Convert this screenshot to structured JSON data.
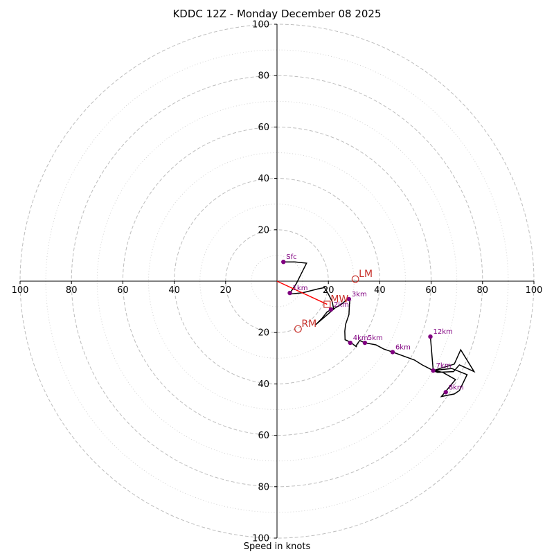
{
  "chart_data": {
    "type": "hodograph",
    "title": "KDDC 12Z - Monday December 08 2025",
    "xlabel": "Speed in knots",
    "ylabel": "",
    "range_knots": [
      -100,
      100
    ],
    "ring_major": [
      20,
      40,
      60,
      80,
      100
    ],
    "ring_minor": [
      10,
      30,
      50,
      70,
      90
    ],
    "x_ticks": [
      -100,
      -80,
      -60,
      -40,
      -20,
      20,
      40,
      60,
      80,
      100
    ],
    "x_tick_labels": [
      "100",
      "80",
      "60",
      "40",
      "20",
      "20",
      "40",
      "60",
      "80",
      "100"
    ],
    "y_ticks": [
      100,
      80,
      60,
      40,
      20,
      -20,
      -40,
      -60,
      -80,
      -100
    ],
    "y_tick_labels": [
      "100",
      "80",
      "60",
      "40",
      "20",
      "20",
      "40",
      "60",
      "80",
      "100"
    ],
    "hodograph_trace": [
      [
        2.5,
        7.5
      ],
      [
        7,
        7.5
      ],
      [
        11.5,
        7
      ],
      [
        9.5,
        3
      ],
      [
        7.5,
        -1
      ],
      [
        5.5,
        -4
      ],
      [
        5,
        -5
      ],
      [
        10,
        -4.5
      ],
      [
        16,
        -3
      ],
      [
        18.5,
        -2.5
      ],
      [
        20,
        -5
      ],
      [
        21.5,
        -8
      ],
      [
        22,
        -10.5
      ],
      [
        19.5,
        -12
      ],
      [
        17.5,
        -14.5
      ],
      [
        15,
        -17
      ],
      [
        22.5,
        -10.5
      ],
      [
        25,
        -9
      ],
      [
        28,
        -6.5
      ],
      [
        28.4,
        -7.2
      ],
      [
        28.2,
        -9
      ],
      [
        28,
        -13
      ],
      [
        26.7,
        -16.8
      ],
      [
        26.4,
        -19.5
      ],
      [
        26.5,
        -22.8
      ],
      [
        28.5,
        -23.7
      ],
      [
        31,
        -25.6
      ],
      [
        30.7,
        -25.2
      ],
      [
        32.2,
        -23.1
      ],
      [
        34.2,
        -24
      ],
      [
        38.5,
        -24.8
      ],
      [
        41.5,
        -26.4
      ],
      [
        45,
        -27.6
      ],
      [
        53.5,
        -30.7
      ],
      [
        56.5,
        -32.6
      ],
      [
        60.8,
        -34.8
      ],
      [
        68,
        -34
      ],
      [
        74,
        -36.4
      ],
      [
        71,
        -42.6
      ],
      [
        69,
        -43.9
      ],
      [
        64,
        -44.9
      ],
      [
        69.5,
        -38.3
      ],
      [
        64.5,
        -35.5
      ],
      [
        62.3,
        -35
      ],
      [
        60.5,
        -34.8
      ],
      [
        62.5,
        -35.5
      ],
      [
        68.7,
        -35.2
      ],
      [
        71,
        -32.6
      ],
      [
        76.7,
        -35.2
      ],
      [
        71.5,
        -26.7
      ],
      [
        69,
        -32.3
      ],
      [
        60.8,
        -34.8
      ],
      [
        59.7,
        -21.6
      ]
    ],
    "height_markers": [
      {
        "label": "Sfc",
        "u": 2.5,
        "v": 7.5
      },
      {
        "label": "1km",
        "u": 5,
        "v": -4.6
      },
      {
        "label": "2km",
        "u": 21,
        "v": -11
      },
      {
        "label": "3km",
        "u": 28,
        "v": -7
      },
      {
        "label": "4km",
        "u": 28.5,
        "v": -24
      },
      {
        "label": "5km",
        "u": 34.2,
        "v": -24
      },
      {
        "label": "6km",
        "u": 45,
        "v": -27.6
      },
      {
        "label": "7km",
        "u": 60.8,
        "v": -34.8
      },
      {
        "label": "8km",
        "u": 65.7,
        "v": -43.2
      },
      {
        "label": "12km",
        "u": 59.7,
        "v": -21.6
      }
    ],
    "storm_motion": [
      {
        "label": "LM",
        "u": 30.5,
        "v": 0.8
      },
      {
        "label": "RM",
        "u": 8.2,
        "v": -18.6
      },
      {
        "label": "MW",
        "u": 19.5,
        "v": -9
      }
    ],
    "mean_wind_vector": {
      "from": [
        0,
        0
      ],
      "to": [
        19.5,
        -9
      ]
    },
    "colors": {
      "trace": "#000000",
      "marker": "#800080",
      "storm_motion": "#c8312b",
      "mean_wind": "#ff0000",
      "rings": "#bdbdbd"
    }
  }
}
